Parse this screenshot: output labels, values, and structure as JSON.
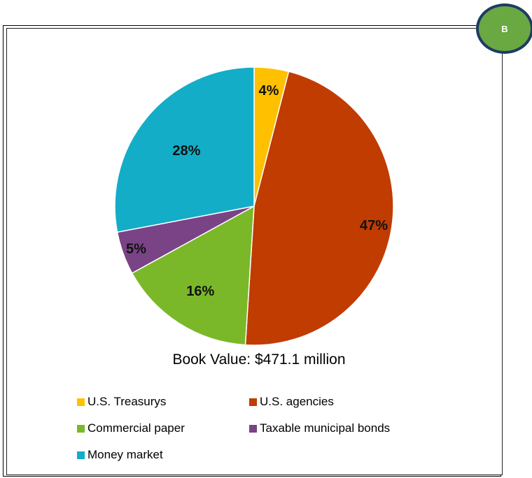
{
  "badge": {
    "label": "B"
  },
  "chart_data": {
    "type": "pie",
    "subtitle": "Book Value: $471.1 million",
    "slices": [
      {
        "name": "U.S. Treasurys",
        "value": 4,
        "label": "4%",
        "color": "#ffc000"
      },
      {
        "name": "U.S. agencies",
        "value": 47,
        "label": "47%",
        "color": "#c03c00"
      },
      {
        "name": "Commercial paper",
        "value": 16,
        "label": "16%",
        "color": "#7ab82a"
      },
      {
        "name": "Taxable municipal bonds",
        "value": 5,
        "label": "5%",
        "color": "#7a4386"
      },
      {
        "name": "Money market",
        "value": 28,
        "label": "28%",
        "color": "#13adc8"
      }
    ],
    "legend_placement": "bottom",
    "start_angle": "12 o'clock, clockwise"
  }
}
